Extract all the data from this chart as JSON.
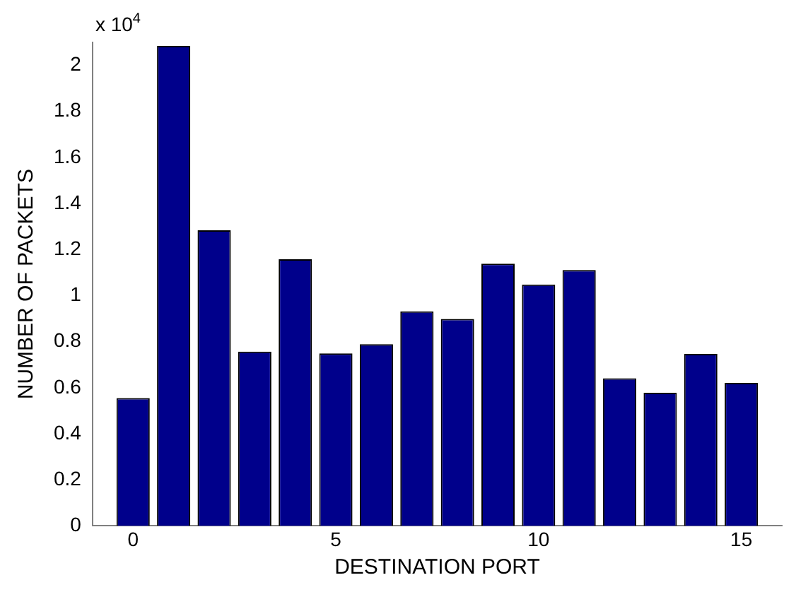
{
  "chart_data": {
    "type": "bar",
    "xlabel": "DESTINATION PORT",
    "ylabel": "NUMBER OF PACKETS",
    "annotations": [
      "x 10$^{4}$"
    ],
    "x": [
      0,
      1,
      2,
      3,
      4,
      5,
      6,
      7,
      8,
      9,
      10,
      11,
      12,
      13,
      14,
      15
    ],
    "values": [
      0.555,
      2.085,
      1.284,
      0.757,
      1.158,
      0.749,
      0.789,
      0.932,
      0.899,
      1.139,
      1.048,
      1.111,
      0.641,
      0.578,
      0.747,
      0.621
    ],
    "color": "#00008b",
    "xlim": [
      -1,
      16
    ],
    "xticks": [
      0,
      5,
      10,
      15
    ],
    "ylim": [
      0,
      2.1
    ],
    "yticks": [
      0,
      0.2,
      0.4,
      0.6,
      0.8,
      1,
      1.2,
      1.4,
      1.6,
      1.8,
      2
    ],
    "grid": false,
    "legend": false
  }
}
